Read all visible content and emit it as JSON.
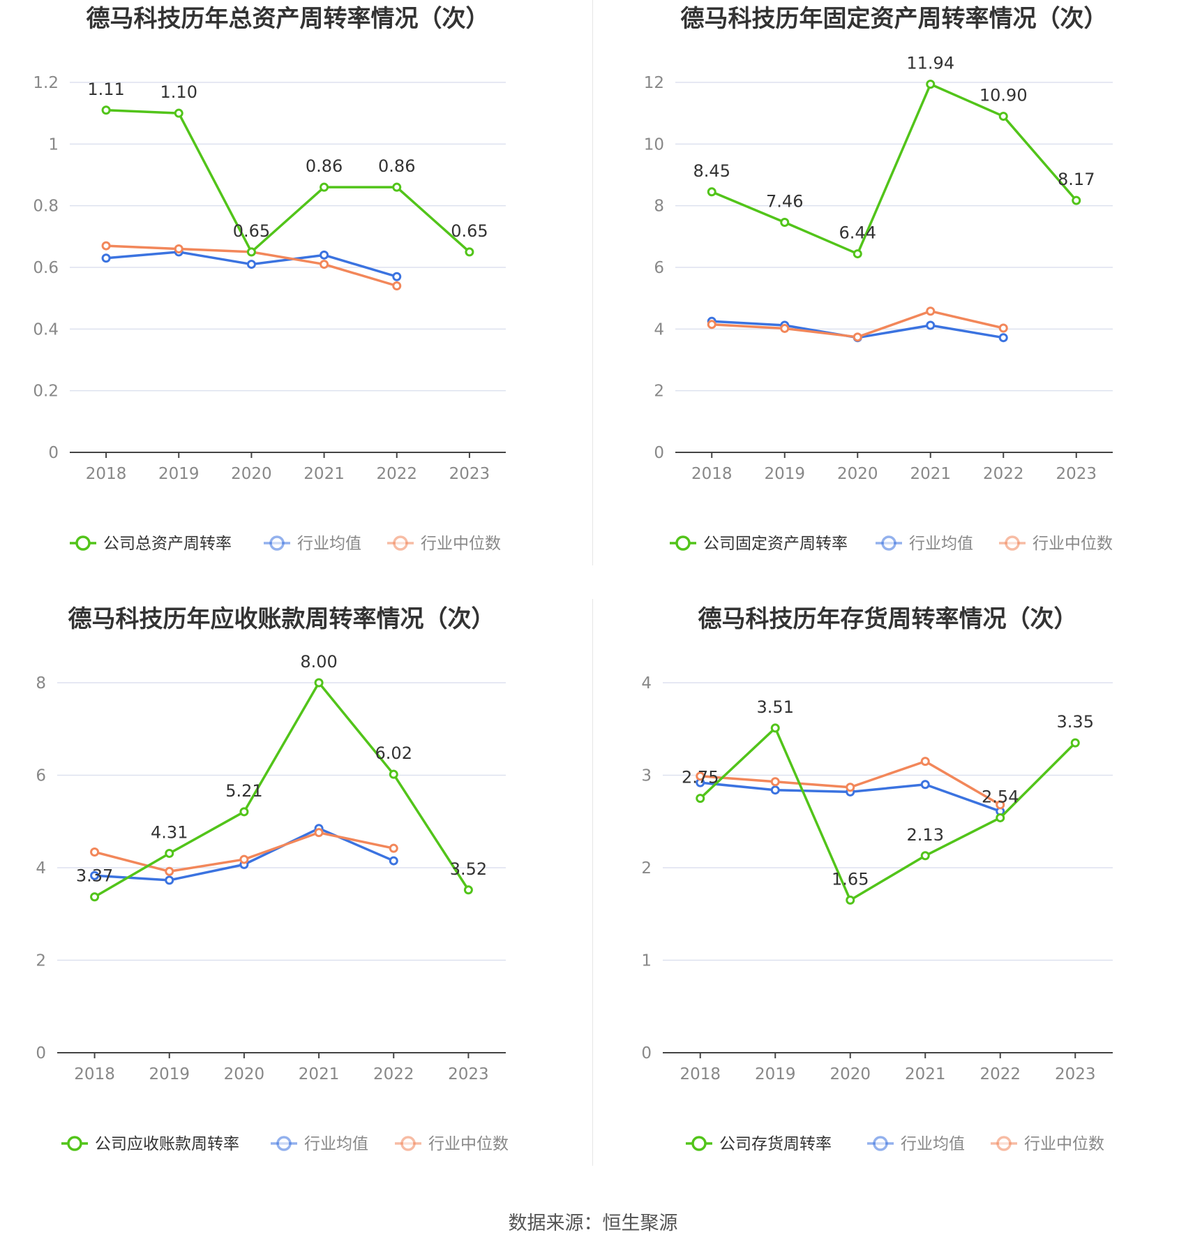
{
  "source": "数据来源：恒生聚源",
  "colors": {
    "company": "#52c41a",
    "avg": "#3b73e0",
    "median": "#f2875a",
    "grid": "#dde1ef",
    "axis": "#444444",
    "tick": "#888888",
    "title": "#333333"
  },
  "chart_data": [
    {
      "type": "line",
      "title": "德马科技历年总资产周转率情况（次）",
      "categories": [
        "2018",
        "2019",
        "2020",
        "2021",
        "2022",
        "2023"
      ],
      "ylim": [
        0,
        1.2
      ],
      "yticks": [
        0,
        0.2,
        0.4,
        0.6,
        0.8,
        1,
        1.2
      ],
      "ytick_labels": [
        "0",
        "0.2",
        "0.4",
        "0.6",
        "0.8",
        "1",
        "1.2"
      ],
      "legend_position": "bottom",
      "series": [
        {
          "name": "公司总资产周转率",
          "color": "#52c41a",
          "values": [
            1.11,
            1.1,
            0.65,
            0.86,
            0.86,
            0.65
          ],
          "labels": [
            "1.11",
            "1.10",
            "0.65",
            "0.86",
            "0.86",
            "0.65"
          ]
        },
        {
          "name": "行业均值",
          "color": "#3b73e0",
          "values": [
            0.63,
            0.65,
            0.61,
            0.64,
            0.57,
            null
          ]
        },
        {
          "name": "行业中位数",
          "color": "#f2875a",
          "values": [
            0.67,
            0.66,
            0.65,
            0.61,
            0.54,
            null
          ]
        }
      ]
    },
    {
      "type": "line",
      "title": "德马科技历年固定资产周转率情况（次）",
      "categories": [
        "2018",
        "2019",
        "2020",
        "2021",
        "2022",
        "2023"
      ],
      "ylim": [
        0,
        12
      ],
      "yticks": [
        0,
        2,
        4,
        6,
        8,
        10,
        12
      ],
      "ytick_labels": [
        "0",
        "2",
        "4",
        "6",
        "8",
        "10",
        "12"
      ],
      "legend_position": "bottom",
      "series": [
        {
          "name": "公司固定资产周转率",
          "color": "#52c41a",
          "values": [
            8.45,
            7.46,
            6.44,
            11.94,
            10.9,
            8.17
          ],
          "labels": [
            "8.45",
            "7.46",
            "6.44",
            "11.94",
            "10.90",
            "8.17"
          ]
        },
        {
          "name": "行业均值",
          "color": "#3b73e0",
          "values": [
            4.25,
            4.12,
            3.72,
            4.12,
            3.72,
            null
          ]
        },
        {
          "name": "行业中位数",
          "color": "#f2875a",
          "values": [
            4.15,
            4.02,
            3.74,
            4.58,
            4.03,
            null
          ]
        }
      ]
    },
    {
      "type": "line",
      "title": "德马科技历年应收账款周转率情况（次）",
      "categories": [
        "2018",
        "2019",
        "2020",
        "2021",
        "2022",
        "2023"
      ],
      "ylim": [
        0,
        8
      ],
      "yticks": [
        0,
        2,
        4,
        6,
        8
      ],
      "ytick_labels": [
        "0",
        "2",
        "4",
        "6",
        "8"
      ],
      "legend_position": "bottom",
      "series": [
        {
          "name": "公司应收账款周转率",
          "color": "#52c41a",
          "values": [
            3.37,
            4.31,
            5.21,
            8.0,
            6.02,
            3.52
          ],
          "labels": [
            "3.37",
            "4.31",
            "5.21",
            "8.00",
            "6.02",
            "3.52"
          ]
        },
        {
          "name": "行业均值",
          "color": "#3b73e0",
          "values": [
            3.83,
            3.73,
            4.07,
            4.85,
            4.15,
            null
          ]
        },
        {
          "name": "行业中位数",
          "color": "#f2875a",
          "values": [
            4.34,
            3.92,
            4.18,
            4.76,
            4.42,
            null
          ]
        }
      ]
    },
    {
      "type": "line",
      "title": "德马科技历年存货周转率情况（次）",
      "categories": [
        "2018",
        "2019",
        "2020",
        "2021",
        "2022",
        "2023"
      ],
      "ylim": [
        0,
        4
      ],
      "yticks": [
        0,
        1,
        2,
        3,
        4
      ],
      "ytick_labels": [
        "0",
        "1",
        "2",
        "3",
        "4"
      ],
      "legend_position": "bottom",
      "series": [
        {
          "name": "公司存货周转率",
          "color": "#52c41a",
          "values": [
            2.75,
            3.51,
            1.65,
            2.13,
            2.54,
            3.35
          ],
          "labels": [
            "2.75",
            "3.51",
            "1.65",
            "2.13",
            "2.54",
            "3.35"
          ]
        },
        {
          "name": "行业均值",
          "color": "#3b73e0",
          "values": [
            2.92,
            2.84,
            2.82,
            2.9,
            2.61,
            null
          ]
        },
        {
          "name": "行业中位数",
          "color": "#f2875a",
          "values": [
            2.99,
            2.93,
            2.87,
            3.15,
            2.68,
            null
          ]
        }
      ]
    }
  ]
}
